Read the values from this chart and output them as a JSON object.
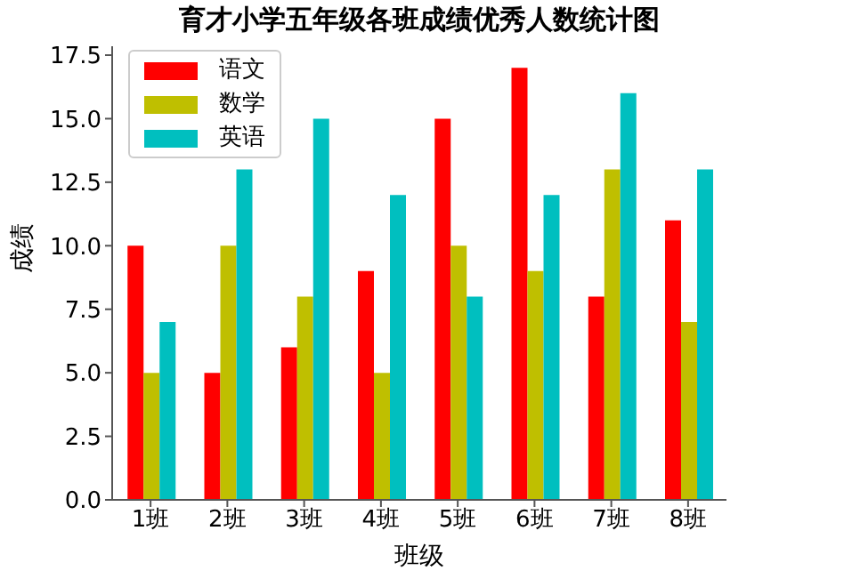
{
  "chart_data": {
    "type": "bar",
    "title": "育才小学五年级各班成绩优秀人数统计图",
    "xlabel": "班级",
    "ylabel": "成绩",
    "categories": [
      "1班",
      "2班",
      "3班",
      "4班",
      "5班",
      "6班",
      "7班",
      "8班"
    ],
    "series": [
      {
        "name": "语文",
        "color": "#ff0000",
        "values": [
          10,
          5,
          6,
          9,
          15,
          17,
          8,
          11
        ]
      },
      {
        "name": "数学",
        "color": "#bfbf00",
        "values": [
          5,
          10,
          8,
          5,
          10,
          9,
          13,
          7
        ]
      },
      {
        "name": "英语",
        "color": "#00bfbf",
        "values": [
          7,
          13,
          15,
          12,
          8,
          12,
          16,
          13
        ]
      }
    ],
    "ylim": [
      0,
      17.85
    ],
    "yticks": [
      {
        "value": 0,
        "label": "0.0"
      },
      2.5,
      {
        "value": 5,
        "label": "5.0"
      },
      7.5,
      {
        "value": 10,
        "label": "10.0"
      },
      12.5,
      {
        "value": 15,
        "label": "15.0"
      },
      17.5
    ],
    "legend": "top left",
    "grid": false
  }
}
